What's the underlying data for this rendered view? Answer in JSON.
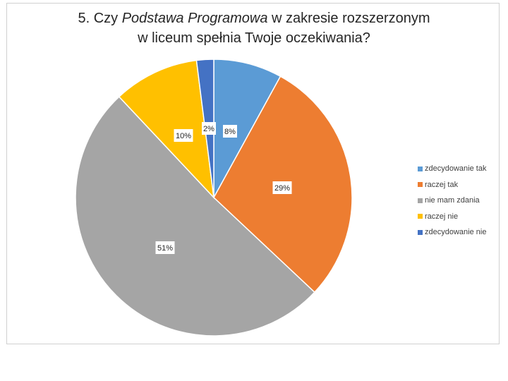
{
  "chart": {
    "title_line1_pre": "5. Czy ",
    "title_line1_italic": "Podstawa Programowa",
    "title_line1_post": " w zakresie rozszerzonym",
    "title_line2": "w liceum spełnia Twoje oczekiwania?"
  },
  "chart_data": {
    "type": "pie",
    "title": "5. Czy Podstawa Programowa w zakresie rozszerzonym w liceum spełnia Twoje oczekiwania?",
    "categories": [
      "zdecydowanie tak",
      "raczej tak",
      "nie mam zdania",
      "raczej nie",
      "zdecydowanie nie"
    ],
    "values": [
      8,
      29,
      51,
      10,
      2
    ],
    "labels": [
      "8%",
      "29%",
      "51%",
      "10%",
      "2%"
    ],
    "colors": [
      "#5b9bd5",
      "#ed7d31",
      "#a5a5a5",
      "#ffc000",
      "#4472c4"
    ],
    "legend": "right"
  }
}
